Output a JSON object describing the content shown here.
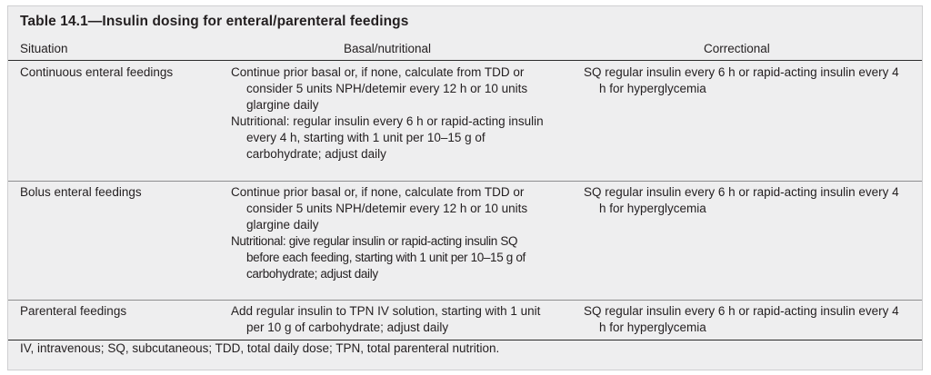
{
  "table": {
    "title": "Table 14.1—Insulin dosing for enteral/parenteral feedings",
    "headers": {
      "situation": "Situation",
      "basal": "Basal/nutritional",
      "correctional": "Correctional"
    },
    "rows": [
      {
        "situation": "Continuous enteral feedings",
        "basal": [
          "Continue prior basal or, if none, calculate from TDD or consider 5 units NPH/detemir every 12 h or 10 units glargine daily",
          "Nutritional: regular insulin every 6 h or rapid-acting insulin every 4 h, starting with 1 unit per 10–15 g of carbohydrate; adjust daily"
        ],
        "correctional": "SQ regular insulin every 6 h or rapid-acting insulin every 4 h for hyperglycemia"
      },
      {
        "situation": "Bolus enteral feedings",
        "basal": [
          "Continue prior basal or, if none, calculate from TDD or consider 5 units NPH/detemir every 12 h or 10 units glargine daily",
          "Nutritional: give regular insulin or rapid-acting insulin SQ before each feeding, starting with 1 unit per 10–15 g of carbohydrate; adjust daily"
        ],
        "correctional": "SQ regular insulin every 6 h or rapid-acting insulin every 4 h for hyperglycemia"
      },
      {
        "situation": "Parenteral feedings",
        "basal": [
          "Add regular insulin to TPN IV solution, starting with 1 unit per 10 g of carbohydrate; adjust daily"
        ],
        "correctional": "SQ regular insulin every 6 h or rapid-acting insulin every 4 h for hyperglycemia"
      }
    ],
    "footnote": "IV, intravenous; SQ, subcutaneous; TDD, total daily dose; TPN, total parenteral nutrition."
  }
}
